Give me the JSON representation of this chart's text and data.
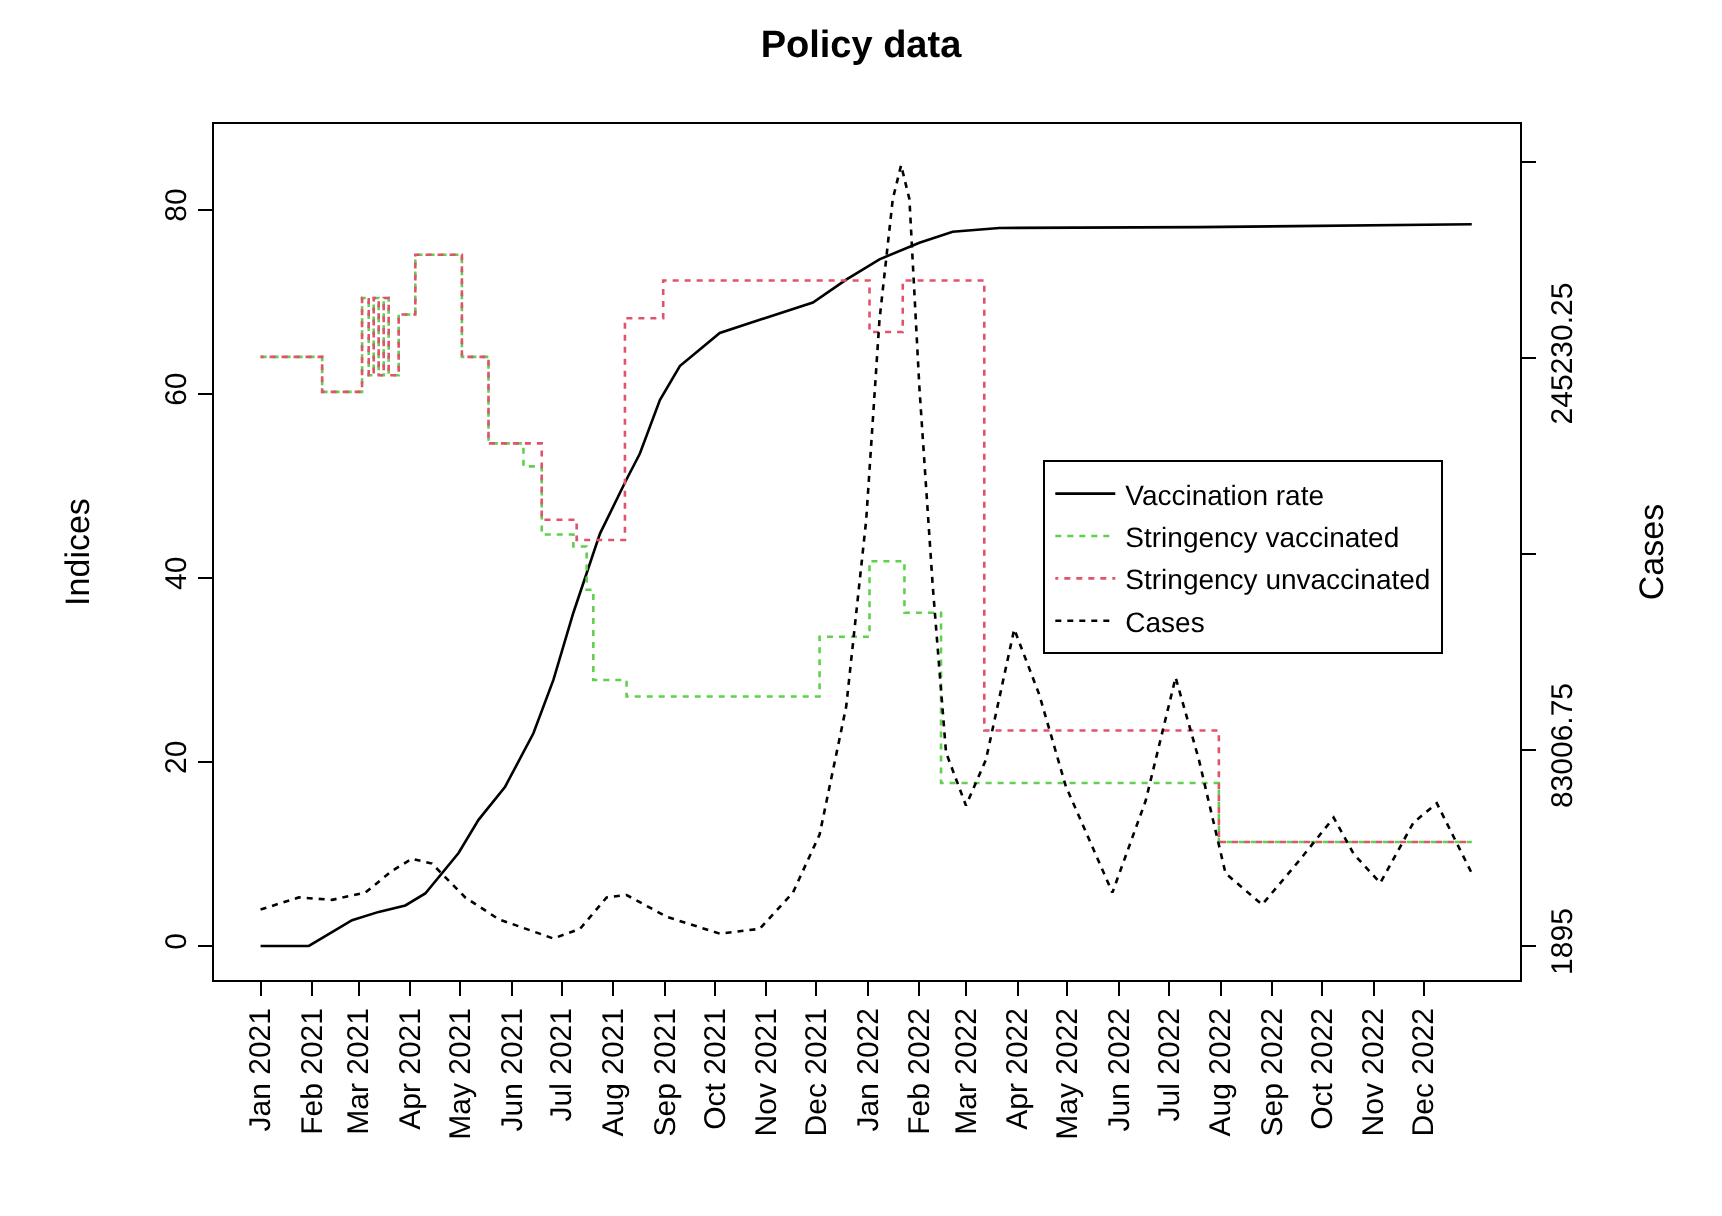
{
  "chart_data": {
    "type": "line",
    "title": "Policy data",
    "ylabel": "Indices",
    "y2label": "Cases",
    "xlim": [
      "2020-12-04",
      "2023-01-28"
    ],
    "xticks": [
      {
        "value": "2021-01-01",
        "label": "Jan 2021"
      },
      {
        "value": "2021-02-01",
        "label": "Feb 2021"
      },
      {
        "value": "2021-03-01",
        "label": "Mar 2021"
      },
      {
        "value": "2021-04-01",
        "label": "Apr 2021"
      },
      {
        "value": "2021-05-01",
        "label": "May 2021"
      },
      {
        "value": "2021-06-01",
        "label": "Jun 2021"
      },
      {
        "value": "2021-07-01",
        "label": "Jul 2021"
      },
      {
        "value": "2021-08-01",
        "label": "Aug 2021"
      },
      {
        "value": "2021-09-01",
        "label": "Sep 2021"
      },
      {
        "value": "2021-10-01",
        "label": "Oct 2021"
      },
      {
        "value": "2021-11-01",
        "label": "Nov 2021"
      },
      {
        "value": "2021-12-01",
        "label": "Dec 2021"
      },
      {
        "value": "2022-01-01",
        "label": "Jan 2022"
      },
      {
        "value": "2022-02-01",
        "label": "Feb 2022"
      },
      {
        "value": "2022-03-01",
        "label": "Mar 2022"
      },
      {
        "value": "2022-04-01",
        "label": "Apr 2022"
      },
      {
        "value": "2022-05-01",
        "label": "May 2022"
      },
      {
        "value": "2022-06-01",
        "label": "Jun 2022"
      },
      {
        "value": "2022-07-01",
        "label": "Jul 2022"
      },
      {
        "value": "2022-08-01",
        "label": "Aug 2022"
      },
      {
        "value": "2022-09-01",
        "label": "Sep 2022"
      },
      {
        "value": "2022-10-01",
        "label": "Oct 2022"
      },
      {
        "value": "2022-11-01",
        "label": "Nov 2022"
      },
      {
        "value": "2022-12-01",
        "label": "Dec 2022"
      }
    ],
    "ylim": [
      -3.7,
      89.3
    ],
    "yticks": [
      0,
      20,
      40,
      60,
      80
    ],
    "y2lim": [
      -12175,
      342073
    ],
    "y2ticks": [
      1895,
      83006.75,
      {
        "value": 164118.5,
        "label": null
      },
      245230.25,
      {
        "value": 326342,
        "label": null
      }
    ],
    "grid": false,
    "legend": "right",
    "marker": "none",
    "series": [
      {
        "name": "Vaccination rate",
        "color": "#000000",
        "type": "line",
        "line_style": "solid",
        "x": [
          "2021-01-01",
          "2021-01-30",
          "2021-02-25",
          "2021-03-13",
          "2021-03-29",
          "2021-04-10",
          "2021-04-30",
          "2021-05-12",
          "2021-05-28",
          "2021-06-14",
          "2021-06-26",
          "2021-07-08",
          "2021-07-24",
          "2021-08-09",
          "2021-08-17",
          "2021-08-29",
          "2021-09-10",
          "2021-10-04",
          "2021-10-31",
          "2021-11-29",
          "2021-12-19",
          "2022-01-08",
          "2022-02-01",
          "2022-02-21",
          "2022-03-21",
          "2022-07-19",
          "2022-12-30"
        ],
        "values": [
          0,
          0,
          2.8,
          3.7,
          4.4,
          5.7,
          10.1,
          13.7,
          17.3,
          23.1,
          28.9,
          36.2,
          44.8,
          50.7,
          53.5,
          59.3,
          63,
          66.6,
          68.2,
          69.9,
          72.4,
          74.6,
          76.4,
          77.6,
          78.0,
          78.1,
          78.4
        ]
      },
      {
        "name": "Stringency vaccinated",
        "color": "#61d04f",
        "type": "step",
        "line_style": "dashed",
        "x": [
          "2021-01-01",
          "2021-02-07",
          "2021-03-03",
          "2021-03-07",
          "2021-03-10",
          "2021-03-13",
          "2021-03-16",
          "2021-03-19",
          "2021-03-25",
          "2021-04-04",
          "2021-05-02",
          "2021-05-18",
          "2021-06-08",
          "2021-06-19",
          "2021-07-08",
          "2021-07-16",
          "2021-07-20",
          "2021-08-09",
          "2021-12-03",
          "2022-01-02",
          "2022-01-23",
          "2022-02-14",
          "2022-07-31",
          "2022-12-30"
        ],
        "values": [
          64.0,
          60.2,
          70.4,
          62.0,
          70.4,
          62.0,
          70.4,
          62.0,
          68.6,
          75.1,
          64.0,
          54.6,
          52.1,
          44.7,
          43.4,
          38.7,
          28.9,
          27.1,
          33.6,
          41.8,
          36.2,
          17.7,
          11.3,
          11.3
        ]
      },
      {
        "name": "Stringency unvaccinated",
        "color": "#df536b",
        "type": "step",
        "line_style": "dashed",
        "x": [
          "2021-01-01",
          "2021-02-07",
          "2021-03-03",
          "2021-03-07",
          "2021-03-10",
          "2021-03-13",
          "2021-03-16",
          "2021-03-19",
          "2021-03-25",
          "2021-04-04",
          "2021-05-02",
          "2021-05-18",
          "2021-06-19",
          "2021-07-10",
          "2021-08-08",
          "2021-08-31",
          "2022-01-02",
          "2022-01-22",
          "2022-03-12",
          "2022-07-31",
          "2022-12-30"
        ],
        "values": [
          64.0,
          60.2,
          70.4,
          62.0,
          70.4,
          62.0,
          70.4,
          62.0,
          68.6,
          75.1,
          64.0,
          54.6,
          46.3,
          44.1,
          68.2,
          72.3,
          66.7,
          72.3,
          23.4,
          11.3,
          11.3
        ]
      },
      {
        "name": "Cases",
        "color": "#000000",
        "type": "line",
        "line_style": "dotted",
        "axis": "y2",
        "x": [
          "2021-01-01",
          "2021-01-24",
          "2021-02-13",
          "2021-03-05",
          "2021-03-21",
          "2021-04-02",
          "2021-04-14",
          "2021-05-04",
          "2021-05-24",
          "2021-06-26",
          "2021-07-12",
          "2021-07-28",
          "2021-08-09",
          "2021-09-02",
          "2021-10-04",
          "2021-10-28",
          "2021-11-17",
          "2021-12-03",
          "2021-12-19",
          "2021-12-31",
          "2022-01-08",
          "2022-01-16",
          "2022-01-21",
          "2022-01-26",
          "2022-02-01",
          "2022-02-09",
          "2022-02-17",
          "2022-03-01",
          "2022-03-13",
          "2022-03-30",
          "2022-04-14",
          "2022-04-30",
          "2022-05-28",
          "2022-06-17",
          "2022-07-05",
          "2022-07-19",
          "2022-08-04",
          "2022-08-26",
          "2022-09-17",
          "2022-10-08",
          "2022-10-20",
          "2022-11-05",
          "2022-11-25",
          "2022-12-09",
          "2022-12-30"
        ],
        "values": [
          17000,
          22000,
          21000,
          24000,
          33000,
          38000,
          36000,
          22000,
          13000,
          5000,
          9000,
          22000,
          23000,
          14000,
          7000,
          9000,
          24000,
          48000,
          101000,
          178000,
          261000,
          311000,
          325000,
          311000,
          233000,
          151000,
          82000,
          60000,
          79000,
          133000,
          106000,
          68000,
          24000,
          62000,
          113000,
          79000,
          32000,
          19000,
          37000,
          55000,
          40000,
          28000,
          53000,
          61000,
          32000
        ]
      }
    ]
  }
}
